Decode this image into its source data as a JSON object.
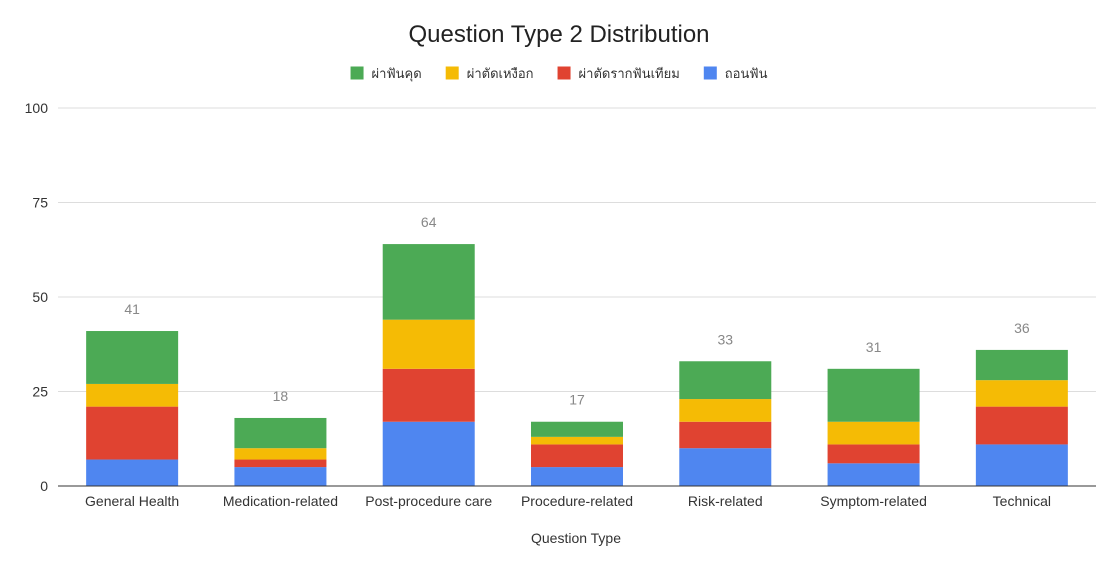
{
  "chart_data": {
    "type": "bar",
    "stacked": true,
    "title": "Question Type 2 Distribution",
    "xlabel": "Question Type",
    "ylabel": "",
    "ylim": [
      0,
      100
    ],
    "yticks": [
      0,
      25,
      50,
      75,
      100
    ],
    "grid": true,
    "legend_position": "top",
    "categories": [
      "General Health",
      "Medication-related",
      "Post-procedure care",
      "Procedure-related",
      "Risk-related",
      "Symptom-related",
      "Technical"
    ],
    "totals": [
      41,
      18,
      64,
      17,
      33,
      31,
      36
    ],
    "series": [
      {
        "name": "ถอนฟัน",
        "color": "#4f86f0",
        "values": [
          7,
          5,
          17,
          5,
          10,
          6,
          11
        ]
      },
      {
        "name": "ผ่าตัดรากฟันเทียม",
        "color": "#e04331",
        "values": [
          14,
          2,
          14,
          6,
          7,
          5,
          10
        ]
      },
      {
        "name": "ผ่าตัดเหงือก",
        "color": "#f5bb05",
        "values": [
          6,
          3,
          13,
          2,
          6,
          6,
          7
        ]
      },
      {
        "name": "ผ่าฟันคุด",
        "color": "#4caa55",
        "values": [
          14,
          8,
          20,
          4,
          10,
          14,
          8
        ]
      }
    ],
    "legend_order": [
      "ผ่าฟันคุด",
      "ผ่าตัดเหงือก",
      "ผ่าตัดรากฟันเทียม",
      "ถอนฟัน"
    ]
  }
}
